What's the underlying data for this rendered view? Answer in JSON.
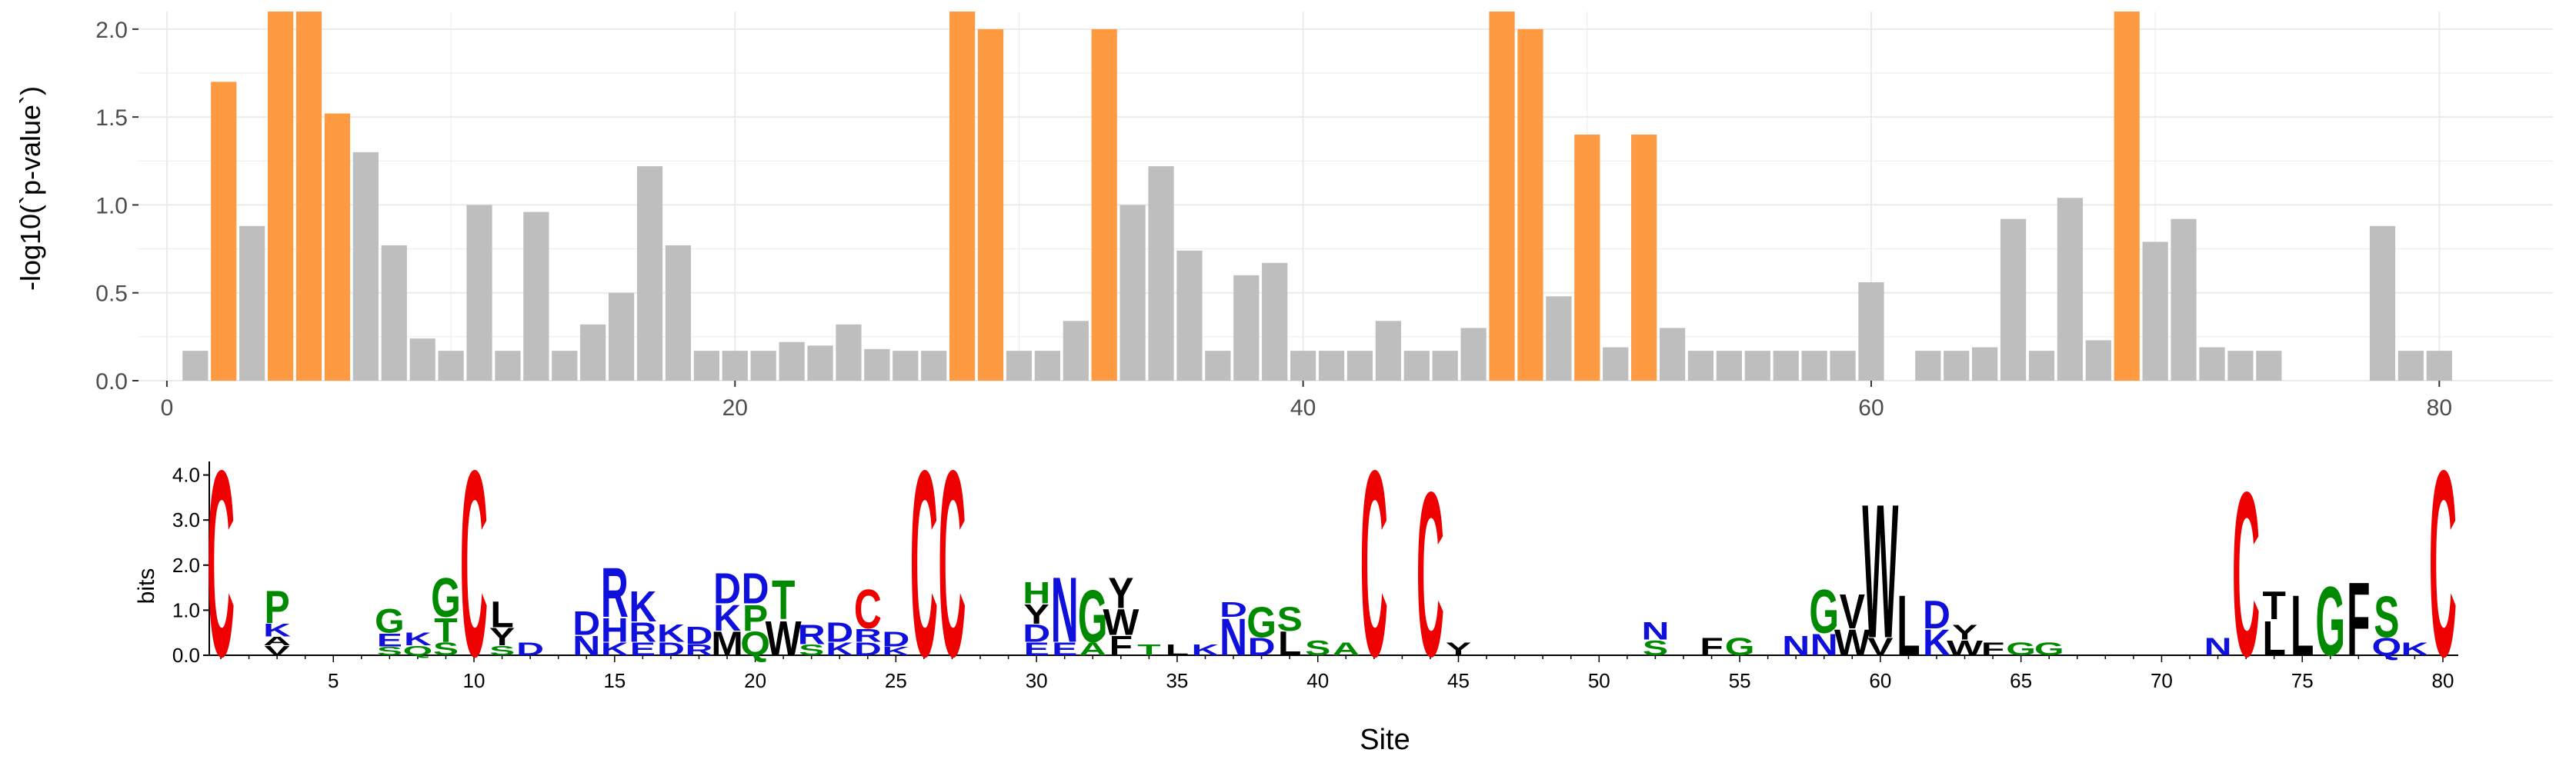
{
  "chart_data": [
    {
      "type": "bar",
      "ylabel": "-log10(`p-value`)",
      "xlim": [
        -1,
        84
      ],
      "ylim": [
        0,
        2.1
      ],
      "x_ticks": [
        "0",
        "20",
        "40",
        "60",
        "80"
      ],
      "y_ticks": [
        "0.0",
        "0.5",
        "1.0",
        "1.5",
        "2.0"
      ],
      "grid": true,
      "significant_color": "#fd9a42",
      "nonsignificant_color": "#bebebe",
      "grid_color": "#ebebeb",
      "sites": [
        1,
        2,
        3,
        4,
        5,
        6,
        7,
        8,
        9,
        10,
        11,
        12,
        13,
        14,
        15,
        16,
        17,
        18,
        19,
        20,
        21,
        22,
        23,
        24,
        25,
        26,
        27,
        28,
        29,
        30,
        31,
        32,
        33,
        34,
        35,
        36,
        37,
        38,
        39,
        40,
        41,
        42,
        43,
        44,
        45,
        46,
        47,
        48,
        49,
        50,
        51,
        52,
        53,
        54,
        55,
        56,
        57,
        58,
        59,
        60,
        62,
        63,
        64,
        65,
        66,
        67,
        68,
        69,
        70,
        71,
        72,
        73,
        74,
        78,
        79,
        80
      ],
      "values": [
        0.17,
        1.7,
        0.88,
        2.1,
        2.1,
        1.52,
        1.3,
        0.77,
        0.24,
        0.17,
        1.0,
        0.17,
        0.96,
        0.17,
        0.32,
        0.5,
        1.22,
        0.77,
        0.17,
        0.17,
        0.17,
        0.22,
        0.2,
        0.32,
        0.18,
        0.17,
        0.17,
        2.1,
        2.0,
        0.17,
        0.17,
        0.34,
        2.0,
        1.0,
        1.22,
        0.74,
        0.17,
        0.6,
        0.67,
        0.17,
        0.17,
        0.17,
        0.34,
        0.17,
        0.17,
        0.3,
        2.1,
        2.0,
        0.48,
        1.4,
        0.19,
        1.4,
        0.3,
        0.17,
        0.17,
        0.17,
        0.17,
        0.17,
        0.17,
        0.56,
        0.17,
        0.17,
        0.19,
        0.92,
        0.17,
        1.04,
        0.23,
        2.1,
        0.79,
        0.92,
        0.19,
        0.17,
        0.17,
        0.88,
        0.17,
        0.17
      ],
      "significant_sites": [
        2,
        4,
        5,
        6,
        28,
        29,
        33,
        47,
        48,
        50,
        52,
        69
      ]
    },
    {
      "type": "sequence-logo",
      "xlabel": "Site",
      "ylabel": "bits",
      "ylim": [
        0,
        4.3
      ],
      "y_ticks": [
        "0.0",
        "1.0",
        "2.0",
        "3.0",
        "4.0"
      ],
      "x_ticks": [
        "5",
        "10",
        "15",
        "20",
        "25",
        "30",
        "35",
        "40",
        "45",
        "50",
        "55",
        "60",
        "65",
        "70",
        "75",
        "80"
      ],
      "residue_colors": {
        "C": "#ee0000",
        "polar": "#008a00",
        "basic": "#1010dd",
        "hydrophobic": "#000000"
      },
      "stacks": [
        {
          "site": 1,
          "letters": [
            {
              "char": "C",
              "bits": 4.3,
              "color": "#ee0000"
            }
          ]
        },
        {
          "site": 3,
          "letters": [
            {
              "char": "V",
              "bits": 0.22,
              "color": "#000000"
            },
            {
              "char": "A",
              "bits": 0.2,
              "color": "#000000"
            },
            {
              "char": "K",
              "bits": 0.3,
              "color": "#1010dd"
            },
            {
              "char": "P",
              "bits": 0.75,
              "color": "#008a00"
            }
          ]
        },
        {
          "site": 7,
          "letters": [
            {
              "char": "S",
              "bits": 0.2,
              "color": "#008a00"
            },
            {
              "char": "E",
              "bits": 0.3,
              "color": "#1010dd"
            },
            {
              "char": "G",
              "bits": 0.55,
              "color": "#008a00"
            }
          ]
        },
        {
          "site": 8,
          "letters": [
            {
              "char": "Q",
              "bits": 0.22,
              "color": "#008a00"
            },
            {
              "char": "K",
              "bits": 0.3,
              "color": "#1010dd"
            }
          ]
        },
        {
          "site": 9,
          "letters": [
            {
              "char": "S",
              "bits": 0.3,
              "color": "#008a00"
            },
            {
              "char": "T",
              "bits": 0.55,
              "color": "#008a00"
            },
            {
              "char": "G",
              "bits": 0.9,
              "color": "#008a00"
            }
          ]
        },
        {
          "site": 10,
          "letters": [
            {
              "char": "C",
              "bits": 4.3,
              "color": "#ee0000"
            }
          ]
        },
        {
          "site": 11,
          "letters": [
            {
              "char": "S",
              "bits": 0.22,
              "color": "#008a00"
            },
            {
              "char": "Y",
              "bits": 0.4,
              "color": "#000000"
            },
            {
              "char": "L",
              "bits": 0.6,
              "color": "#000000"
            }
          ]
        },
        {
          "site": 12,
          "letters": [
            {
              "char": "D",
              "bits": 0.3,
              "color": "#1010dd"
            }
          ]
        },
        {
          "site": 14,
          "letters": [
            {
              "char": "N",
              "bits": 0.45,
              "color": "#1010dd"
            },
            {
              "char": "D",
              "bits": 0.55,
              "color": "#1010dd"
            }
          ]
        },
        {
          "site": 15,
          "letters": [
            {
              "char": "K",
              "bits": 0.3,
              "color": "#1010dd"
            },
            {
              "char": "H",
              "bits": 0.55,
              "color": "#1010dd"
            },
            {
              "char": "R",
              "bits": 1.15,
              "color": "#1010dd"
            }
          ]
        },
        {
          "site": 16,
          "letters": [
            {
              "char": "E",
              "bits": 0.3,
              "color": "#1010dd"
            },
            {
              "char": "R",
              "bits": 0.45,
              "color": "#1010dd"
            },
            {
              "char": "K",
              "bits": 0.7,
              "color": "#1010dd"
            }
          ]
        },
        {
          "site": 17,
          "letters": [
            {
              "char": "D",
              "bits": 0.3,
              "color": "#1010dd"
            },
            {
              "char": "K",
              "bits": 0.4,
              "color": "#1010dd"
            }
          ]
        },
        {
          "site": 18,
          "letters": [
            {
              "char": "R",
              "bits": 0.25,
              "color": "#1010dd"
            },
            {
              "char": "D",
              "bits": 0.4,
              "color": "#1010dd"
            }
          ]
        },
        {
          "site": 19,
          "letters": [
            {
              "char": "M",
              "bits": 0.55,
              "color": "#000000"
            },
            {
              "char": "K",
              "bits": 0.6,
              "color": "#1010dd"
            },
            {
              "char": "D",
              "bits": 0.7,
              "color": "#1010dd"
            }
          ]
        },
        {
          "site": 20,
          "letters": [
            {
              "char": "Q",
              "bits": 0.55,
              "color": "#008a00"
            },
            {
              "char": "P",
              "bits": 0.6,
              "color": "#008a00"
            },
            {
              "char": "D",
              "bits": 0.7,
              "color": "#1010dd"
            }
          ]
        },
        {
          "site": 21,
          "letters": [
            {
              "char": "W",
              "bits": 0.8,
              "color": "#000000"
            },
            {
              "char": "T",
              "bits": 0.9,
              "color": "#008a00"
            }
          ]
        },
        {
          "site": 22,
          "letters": [
            {
              "char": "S",
              "bits": 0.25,
              "color": "#008a00"
            },
            {
              "char": "R",
              "bits": 0.45,
              "color": "#1010dd"
            }
          ]
        },
        {
          "site": 23,
          "letters": [
            {
              "char": "K",
              "bits": 0.3,
              "color": "#1010dd"
            },
            {
              "char": "D",
              "bits": 0.45,
              "color": "#1010dd"
            }
          ]
        },
        {
          "site": 24,
          "letters": [
            {
              "char": "D",
              "bits": 0.3,
              "color": "#1010dd"
            },
            {
              "char": "R",
              "bits": 0.3,
              "color": "#1010dd"
            },
            {
              "char": "C",
              "bits": 0.9,
              "color": "#ee0000"
            }
          ]
        },
        {
          "site": 25,
          "letters": [
            {
              "char": "K",
              "bits": 0.2,
              "color": "#1010dd"
            },
            {
              "char": "D",
              "bits": 0.35,
              "color": "#1010dd"
            }
          ]
        },
        {
          "site": 26,
          "letters": [
            {
              "char": "C",
              "bits": 4.3,
              "color": "#ee0000"
            }
          ]
        },
        {
          "site": 27,
          "letters": [
            {
              "char": "C",
              "bits": 4.3,
              "color": "#ee0000"
            }
          ]
        },
        {
          "site": 30,
          "letters": [
            {
              "char": "E",
              "bits": 0.3,
              "color": "#1010dd"
            },
            {
              "char": "D",
              "bits": 0.4,
              "color": "#1010dd"
            },
            {
              "char": "Y",
              "bits": 0.45,
              "color": "#000000"
            },
            {
              "char": "H",
              "bits": 0.5,
              "color": "#008a00"
            }
          ]
        },
        {
          "site": 31,
          "letters": [
            {
              "char": "E",
              "bits": 0.3,
              "color": "#1010dd"
            },
            {
              "char": "N",
              "bits": 1.5,
              "color": "#1010dd"
            }
          ]
        },
        {
          "site": 32,
          "letters": [
            {
              "char": "A",
              "bits": 0.3,
              "color": "#008a00"
            },
            {
              "char": "G",
              "bits": 1.2,
              "color": "#008a00"
            }
          ]
        },
        {
          "site": 33,
          "letters": [
            {
              "char": "F",
              "bits": 0.45,
              "color": "#000000"
            },
            {
              "char": "W",
              "bits": 0.6,
              "color": "#000000"
            },
            {
              "char": "Y",
              "bits": 0.7,
              "color": "#000000"
            }
          ]
        },
        {
          "site": 34,
          "letters": [
            {
              "char": "T",
              "bits": 0.25,
              "color": "#008a00"
            }
          ]
        },
        {
          "site": 35,
          "letters": [
            {
              "char": "L",
              "bits": 0.25,
              "color": "#000000"
            }
          ]
        },
        {
          "site": 36,
          "letters": [
            {
              "char": "K",
              "bits": 0.25,
              "color": "#1010dd"
            }
          ]
        },
        {
          "site": 37,
          "letters": [
            {
              "char": "N",
              "bits": 0.85,
              "color": "#1010dd"
            },
            {
              "char": "D",
              "bits": 0.35,
              "color": "#1010dd"
            }
          ]
        },
        {
          "site": 38,
          "letters": [
            {
              "char": "D",
              "bits": 0.4,
              "color": "#1010dd"
            },
            {
              "char": "G",
              "bits": 0.7,
              "color": "#008a00"
            }
          ]
        },
        {
          "site": 39,
          "letters": [
            {
              "char": "L",
              "bits": 0.55,
              "color": "#000000"
            },
            {
              "char": "S",
              "bits": 0.55,
              "color": "#008a00"
            }
          ]
        },
        {
          "site": 40,
          "letters": [
            {
              "char": "S",
              "bits": 0.35,
              "color": "#008a00"
            }
          ]
        },
        {
          "site": 41,
          "letters": [
            {
              "char": "A",
              "bits": 0.3,
              "color": "#008a00"
            }
          ]
        },
        {
          "site": 42,
          "letters": [
            {
              "char": "C",
              "bits": 4.3,
              "color": "#ee0000"
            }
          ]
        },
        {
          "site": 44,
          "letters": [
            {
              "char": "C",
              "bits": 3.8,
              "color": "#ee0000"
            }
          ]
        },
        {
          "site": 45,
          "letters": [
            {
              "char": "Y",
              "bits": 0.3,
              "color": "#000000"
            }
          ]
        },
        {
          "site": 52,
          "letters": [
            {
              "char": "S",
              "bits": 0.35,
              "color": "#008a00"
            },
            {
              "char": "N",
              "bits": 0.4,
              "color": "#1010dd"
            }
          ]
        },
        {
          "site": 54,
          "letters": [
            {
              "char": "F",
              "bits": 0.4,
              "color": "#000000"
            }
          ]
        },
        {
          "site": 55,
          "letters": [
            {
              "char": "G",
              "bits": 0.4,
              "color": "#008a00"
            }
          ]
        },
        {
          "site": 57,
          "letters": [
            {
              "char": "N",
              "bits": 0.45,
              "color": "#1010dd"
            }
          ]
        },
        {
          "site": 58,
          "letters": [
            {
              "char": "N",
              "bits": 0.5,
              "color": "#1010dd"
            },
            {
              "char": "G",
              "bits": 1.0,
              "color": "#008a00"
            }
          ]
        },
        {
          "site": 59,
          "letters": [
            {
              "char": "W",
              "bits": 0.6,
              "color": "#000000"
            },
            {
              "char": "V",
              "bits": 0.8,
              "color": "#000000"
            }
          ]
        },
        {
          "site": 60,
          "letters": [
            {
              "char": "V",
              "bits": 0.4,
              "color": "#000000"
            },
            {
              "char": "W",
              "bits": 3.1,
              "color": "#000000"
            }
          ]
        },
        {
          "site": 61,
          "letters": [
            {
              "char": "L",
              "bits": 1.4,
              "color": "#000000"
            }
          ]
        },
        {
          "site": 62,
          "letters": [
            {
              "char": "K",
              "bits": 0.6,
              "color": "#1010dd"
            },
            {
              "char": "D",
              "bits": 0.65,
              "color": "#1010dd"
            }
          ]
        },
        {
          "site": 63,
          "letters": [
            {
              "char": "W",
              "bits": 0.35,
              "color": "#000000"
            },
            {
              "char": "Y",
              "bits": 0.35,
              "color": "#000000"
            }
          ]
        },
        {
          "site": 64,
          "letters": [
            {
              "char": "F",
              "bits": 0.3,
              "color": "#000000"
            }
          ]
        },
        {
          "site": 65,
          "letters": [
            {
              "char": "G",
              "bits": 0.3,
              "color": "#008a00"
            }
          ]
        },
        {
          "site": 66,
          "letters": [
            {
              "char": "G",
              "bits": 0.3,
              "color": "#008a00"
            }
          ]
        },
        {
          "site": 72,
          "letters": [
            {
              "char": "N",
              "bits": 0.4,
              "color": "#1010dd"
            }
          ]
        },
        {
          "site": 73,
          "letters": [
            {
              "char": "C",
              "bits": 3.8,
              "color": "#ee0000"
            }
          ]
        },
        {
          "site": 74,
          "letters": [
            {
              "char": "L",
              "bits": 0.8,
              "color": "#000000"
            },
            {
              "char": "T",
              "bits": 0.65,
              "color": "#000000"
            }
          ]
        },
        {
          "site": 75,
          "letters": [
            {
              "char": "L",
              "bits": 1.4,
              "color": "#000000"
            }
          ]
        },
        {
          "site": 76,
          "letters": [
            {
              "char": "G",
              "bits": 1.6,
              "color": "#008a00"
            }
          ]
        },
        {
          "site": 77,
          "letters": [
            {
              "char": "F",
              "bits": 1.7,
              "color": "#000000"
            }
          ]
        },
        {
          "site": 78,
          "letters": [
            {
              "char": "Q",
              "bits": 0.4,
              "color": "#1010dd"
            },
            {
              "char": "S",
              "bits": 0.95,
              "color": "#008a00"
            }
          ]
        },
        {
          "site": 79,
          "letters": [
            {
              "char": "K",
              "bits": 0.3,
              "color": "#1010dd"
            }
          ]
        },
        {
          "site": 80,
          "letters": [
            {
              "char": "C",
              "bits": 4.3,
              "color": "#ee0000"
            }
          ]
        }
      ]
    }
  ]
}
